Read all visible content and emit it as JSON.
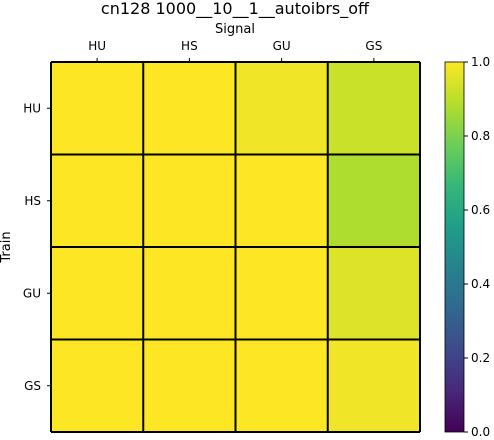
{
  "chart_data": {
    "type": "heatmap",
    "title": "cn128 1000__10__1__autoibrs_off",
    "xlabel": "Signal",
    "ylabel": "Train",
    "x_categories": [
      "HU",
      "HS",
      "GU",
      "GS"
    ],
    "y_categories": [
      "HU",
      "HS",
      "GU",
      "GS"
    ],
    "values": [
      [
        1.0,
        1.0,
        0.98,
        0.92
      ],
      [
        1.0,
        1.0,
        1.0,
        0.88
      ],
      [
        1.0,
        1.0,
        1.0,
        0.95
      ],
      [
        1.0,
        1.0,
        1.0,
        0.98
      ]
    ],
    "colormap": "viridis",
    "colorbar": {
      "range": [
        0.0,
        1.0
      ],
      "ticks": [
        "0.0",
        "0.2",
        "0.4",
        "0.6",
        "0.8",
        "1.0"
      ]
    },
    "x_axis_position": "top",
    "grid_color": "#000000"
  }
}
